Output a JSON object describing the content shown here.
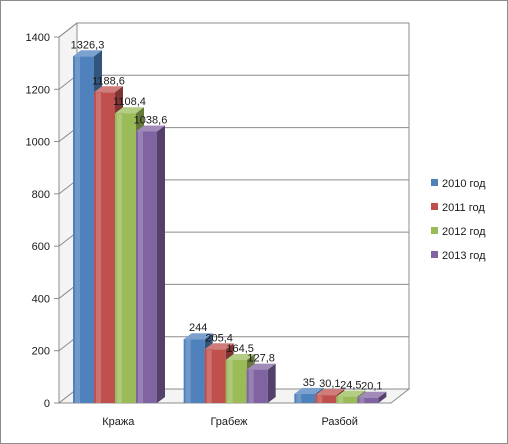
{
  "chart_data": {
    "type": "bar",
    "style": "3d-clustered-column",
    "categories": [
      "Кража",
      "Грабеж",
      "Разбой"
    ],
    "series": [
      {
        "name": "2010 год",
        "color": "#4f81bd",
        "values": [
          1326.3,
          244,
          35
        ],
        "labels": [
          "1326,3",
          "244",
          "35"
        ]
      },
      {
        "name": "2011 год",
        "color": "#c0504d",
        "values": [
          1188.6,
          205.4,
          30.1
        ],
        "labels": [
          "1188,6",
          "205,4",
          "30,1"
        ]
      },
      {
        "name": "2012 год",
        "color": "#9bbb59",
        "values": [
          1108.4,
          164.5,
          24.5
        ],
        "labels": [
          "1108,4",
          "164,5",
          "24,5"
        ]
      },
      {
        "name": "2013 год",
        "color": "#8064a2",
        "values": [
          1038.6,
          127.8,
          20.1
        ],
        "labels": [
          "1038,6",
          "127,8",
          "20,1"
        ]
      }
    ],
    "y_ticks": [
      "0",
      "200",
      "400",
      "600",
      "800",
      "1000",
      "1200",
      "1400"
    ],
    "ylim": [
      0,
      1400
    ],
    "grid": true,
    "legend": "right"
  }
}
